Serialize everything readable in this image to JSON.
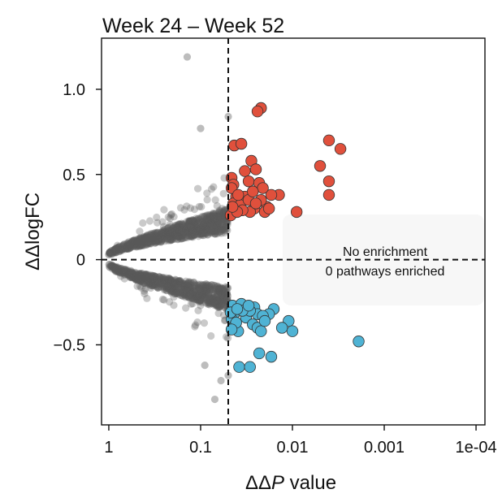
{
  "chart_data": {
    "type": "scatter",
    "title": "Week 24 – Week 52",
    "xlabel_prefix": "ΔΔ",
    "xlabel_italic": "P",
    "xlabel_suffix": " value",
    "ylabel": "ΔΔlogFC",
    "x_scale": "-log10(P)",
    "xlim": [
      1.2,
      8e-05
    ],
    "ylim": [
      -0.97,
      1.3
    ],
    "x_ticks": [
      {
        "value": 1,
        "label": "1"
      },
      {
        "value": 0.1,
        "label": "0.1"
      },
      {
        "value": 0.01,
        "label": "0.01"
      },
      {
        "value": 0.001,
        "label": "0.001"
      },
      {
        "value": 0.0001,
        "label": "1e-04"
      }
    ],
    "y_ticks": [
      {
        "value": 1.0,
        "label": "1.0"
      },
      {
        "value": 0.5,
        "label": "0.5"
      },
      {
        "value": 0,
        "label": "0"
      },
      {
        "value": -0.5,
        "label": "−0.5"
      }
    ],
    "threshold_p": 0.05,
    "annotation": {
      "line1": "No enrichment",
      "line2": "0 pathways enriched"
    },
    "colors": {
      "nonsig": "#595959",
      "up": "#e0503c",
      "down": "#4fb3d4",
      "grid_line": "#111111"
    },
    "series": [
      {
        "name": "significant up",
        "points": [
          [
            0.022,
            0.89
          ],
          [
            0.024,
            0.87
          ],
          [
            0.043,
            0.67
          ],
          [
            0.036,
            0.68
          ],
          [
            0.004,
            0.7
          ],
          [
            0.003,
            0.65
          ],
          [
            0.005,
            0.55
          ],
          [
            0.004,
            0.46
          ],
          [
            0.004,
            0.38
          ],
          [
            0.028,
            0.58
          ],
          [
            0.025,
            0.53
          ],
          [
            0.033,
            0.52
          ],
          [
            0.046,
            0.48
          ],
          [
            0.03,
            0.46
          ],
          [
            0.044,
            0.44
          ],
          [
            0.041,
            0.37
          ],
          [
            0.033,
            0.37
          ],
          [
            0.014,
            0.38
          ],
          [
            0.017,
            0.38
          ],
          [
            0.019,
            0.31
          ],
          [
            0.02,
            0.28
          ],
          [
            0.009,
            0.28
          ],
          [
            0.044,
            0.33
          ],
          [
            0.047,
            0.26
          ],
          [
            0.023,
            0.45
          ],
          [
            0.021,
            0.42
          ],
          [
            0.046,
            0.42
          ],
          [
            0.037,
            0.32
          ],
          [
            0.026,
            0.3
          ],
          [
            0.029,
            0.28
          ],
          [
            0.035,
            0.29
          ],
          [
            0.03,
            0.35
          ],
          [
            0.018,
            0.3
          ],
          [
            0.022,
            0.35
          ],
          [
            0.025,
            0.33
          ],
          [
            0.04,
            0.28
          ],
          [
            0.027,
            0.4
          ],
          [
            0.045,
            0.31
          ],
          [
            0.039,
            0.38
          ]
        ]
      },
      {
        "name": "significant down",
        "points": [
          [
            0.016,
            -0.29
          ],
          [
            0.018,
            -0.32
          ],
          [
            0.045,
            -0.27
          ],
          [
            0.042,
            -0.31
          ],
          [
            0.036,
            -0.26
          ],
          [
            0.026,
            -0.28
          ],
          [
            0.032,
            -0.34
          ],
          [
            0.027,
            -0.38
          ],
          [
            0.024,
            -0.32
          ],
          [
            0.021,
            -0.33
          ],
          [
            0.029,
            -0.3
          ],
          [
            0.046,
            -0.35
          ],
          [
            0.043,
            -0.39
          ],
          [
            0.039,
            -0.42
          ],
          [
            0.024,
            -0.4
          ],
          [
            0.022,
            -0.42
          ],
          [
            0.011,
            -0.36
          ],
          [
            0.01,
            -0.42
          ],
          [
            0.013,
            -0.4
          ],
          [
            0.0019,
            -0.48
          ],
          [
            0.023,
            -0.55
          ],
          [
            0.017,
            -0.57
          ],
          [
            0.038,
            -0.63
          ],
          [
            0.029,
            -0.63
          ],
          [
            0.035,
            -0.3
          ],
          [
            0.03,
            -0.27
          ],
          [
            0.047,
            -0.31
          ],
          [
            0.041,
            -0.37
          ],
          [
            0.04,
            -0.29
          ],
          [
            0.02,
            -0.36
          ],
          [
            0.046,
            -0.41
          ]
        ]
      }
    ]
  }
}
